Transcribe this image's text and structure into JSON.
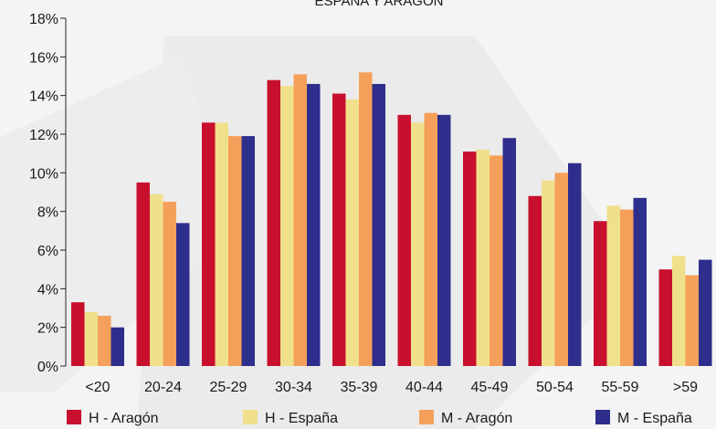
{
  "chart_data": {
    "type": "bar",
    "title": "ESPAÑA Y ARAGÓN",
    "xlabel": "",
    "ylabel": "",
    "categories": [
      "<20",
      "20-24",
      "25-29",
      "30-34",
      "35-39",
      "40-44",
      "45-49",
      "50-54",
      "55-59",
      ">59"
    ],
    "yticks": [
      "0%",
      "2%",
      "4%",
      "6%",
      "8%",
      "10%",
      "12%",
      "14%",
      "16%",
      "18%"
    ],
    "ylim": [
      0,
      18
    ],
    "grid": false,
    "legend_position": "bottom",
    "series": [
      {
        "name": "H - Aragón",
        "color": "#c8102e",
        "values": [
          3.3,
          9.5,
          12.6,
          14.8,
          14.1,
          13.0,
          11.1,
          8.8,
          7.5,
          5.0
        ]
      },
      {
        "name": "H - España",
        "color": "#f0e08c",
        "values": [
          2.8,
          8.9,
          12.6,
          14.5,
          13.8,
          12.6,
          11.2,
          9.6,
          8.3,
          5.7
        ]
      },
      {
        "name": "M - Aragón",
        "color": "#f5a05a",
        "values": [
          2.6,
          8.5,
          11.9,
          15.1,
          15.2,
          13.1,
          10.9,
          10.0,
          8.1,
          4.7
        ]
      },
      {
        "name": "M - España",
        "color": "#2e2e8c",
        "values": [
          2.0,
          7.4,
          11.9,
          14.6,
          14.6,
          13.0,
          11.8,
          10.5,
          8.7,
          5.5
        ]
      }
    ]
  }
}
